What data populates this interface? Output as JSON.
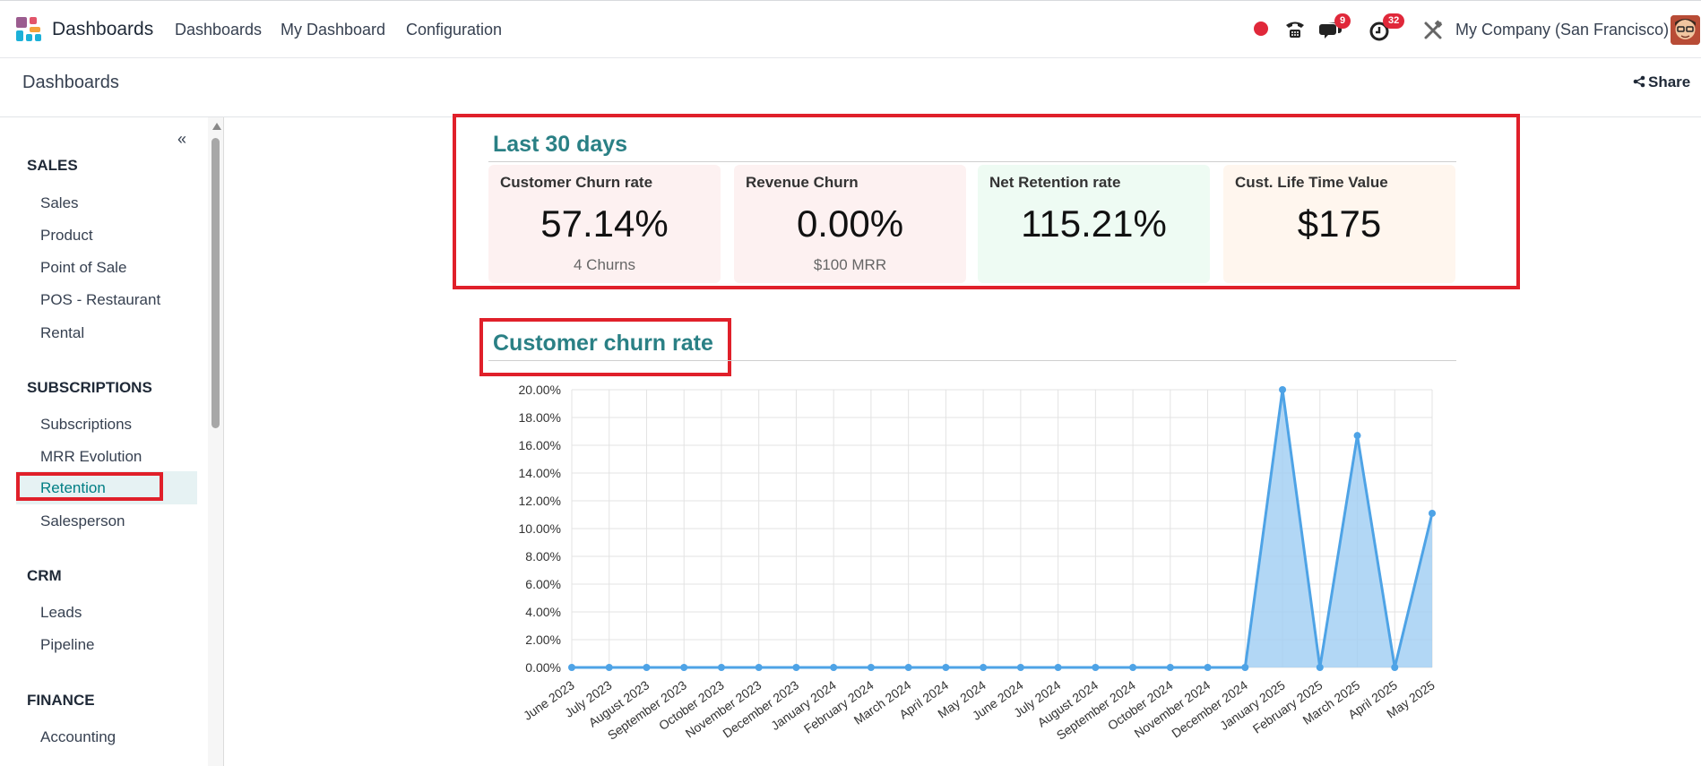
{
  "navbar": {
    "brand": "Dashboards",
    "menu": [
      "Dashboards",
      "My Dashboard",
      "Configuration"
    ],
    "icons": [
      "record-dot-icon",
      "phone-icon",
      "chat-icon",
      "activity-clock-icon",
      "tools-icon"
    ],
    "chat_badge": "9",
    "activity_badge": "32",
    "company": "My Company (San Francisco)",
    "colors": {
      "record": "#e0283a",
      "badge": "#e0283a"
    }
  },
  "control": {
    "breadcrumb": "Dashboards",
    "share_label": "Share"
  },
  "sidebar": {
    "collapse_glyph": "«",
    "sections": [
      {
        "title": "SALES",
        "items": [
          "Sales",
          "Product",
          "Point of Sale",
          "POS - Restaurant",
          "Rental"
        ]
      },
      {
        "title": "SUBSCRIPTIONS",
        "items": [
          "Subscriptions",
          "MRR Evolution",
          "Retention",
          "Salesperson"
        ]
      },
      {
        "title": "CRM",
        "items": [
          "Leads",
          "Pipeline"
        ]
      },
      {
        "title": "FINANCE",
        "items": [
          "Accounting"
        ]
      }
    ],
    "active_item": "Retention"
  },
  "kpi_section": {
    "title": "Last 30 days",
    "cards": [
      {
        "label": "Customer Churn rate",
        "value": "57.14%",
        "sub": "4 Churns",
        "bg": "#fdf1f1"
      },
      {
        "label": "Revenue Churn",
        "value": "0.00%",
        "sub": "$100 MRR",
        "bg": "#fdf1f1"
      },
      {
        "label": "Net Retention rate",
        "value": "115.21%",
        "sub": "",
        "bg": "#eefbf3"
      },
      {
        "label": "Cust. Life Time Value",
        "value": "$175",
        "sub": "",
        "bg": "#fff6ee"
      }
    ]
  },
  "chart_section": {
    "title": "Customer churn rate"
  },
  "chart_data": {
    "type": "area",
    "title": "Customer churn rate",
    "xlabel": "",
    "ylabel": "",
    "categories": [
      "June 2023",
      "July 2023",
      "August 2023",
      "September 2023",
      "October 2023",
      "November 2023",
      "December 2023",
      "January 2024",
      "February 2024",
      "March 2024",
      "April 2024",
      "May 2024",
      "June 2024",
      "July 2024",
      "August 2024",
      "September 2024",
      "October 2024",
      "November 2024",
      "December 2024",
      "January 2025",
      "February 2025",
      "March 2025",
      "April 2025",
      "May 2025"
    ],
    "values": [
      0,
      0,
      0,
      0,
      0,
      0,
      0,
      0,
      0,
      0,
      0,
      0,
      0,
      0,
      0,
      0,
      0,
      0,
      0,
      20.0,
      0,
      16.7,
      0,
      11.1
    ],
    "ylim": [
      0,
      20
    ],
    "y_ticks": [
      "0.00%",
      "2.00%",
      "4.00%",
      "6.00%",
      "8.00%",
      "10.00%",
      "12.00%",
      "14.00%",
      "16.00%",
      "18.00%",
      "20.00%"
    ],
    "grid": true,
    "colors": {
      "line": "#4ea3e6",
      "fill": "#9fcdf3"
    }
  }
}
